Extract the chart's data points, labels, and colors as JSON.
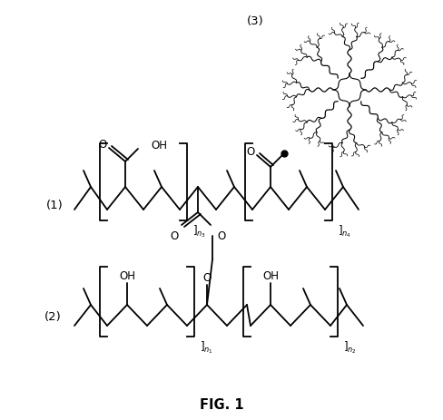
{
  "background": "#ffffff",
  "label1": "(1)",
  "label2": "(2)",
  "label3": "(3)",
  "fig_label": "FIG. 1"
}
